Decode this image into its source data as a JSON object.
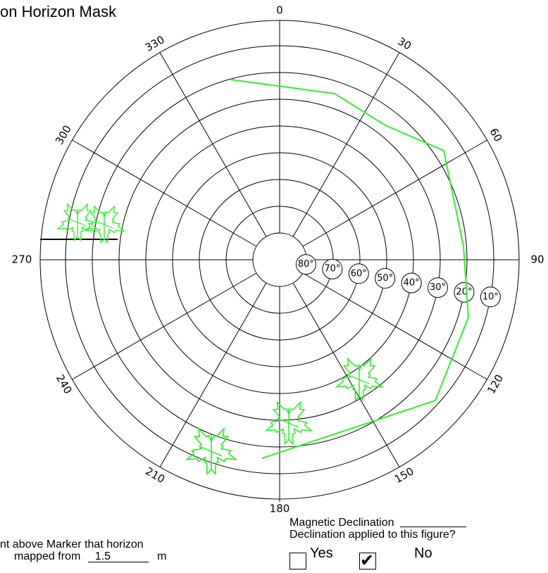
{
  "title": "on Horizon Mask",
  "diagram": {
    "azimuth_labels": [
      "0",
      "30",
      "60",
      "90",
      "120",
      "150",
      "180",
      "210",
      "240",
      "270",
      "300",
      "330"
    ],
    "elevation_labels": [
      "80°",
      "70°",
      "60°",
      "50°",
      "40°",
      "30°",
      "20°",
      "10°"
    ],
    "horizon_color": "#33ee33",
    "tree_icon": "tree-icon"
  },
  "notes": {
    "height_line1": "nt above Marker that horizon",
    "height_line2_prefix": "mapped from",
    "height_value": "1.5",
    "height_unit": "m",
    "declination_label": "Magnetic Declination",
    "declination_value": "",
    "applied_question": "Declination applied to this figure?",
    "yes_label": "Yes",
    "no_label": "No",
    "yes_checked": false,
    "no_checked": true
  }
}
